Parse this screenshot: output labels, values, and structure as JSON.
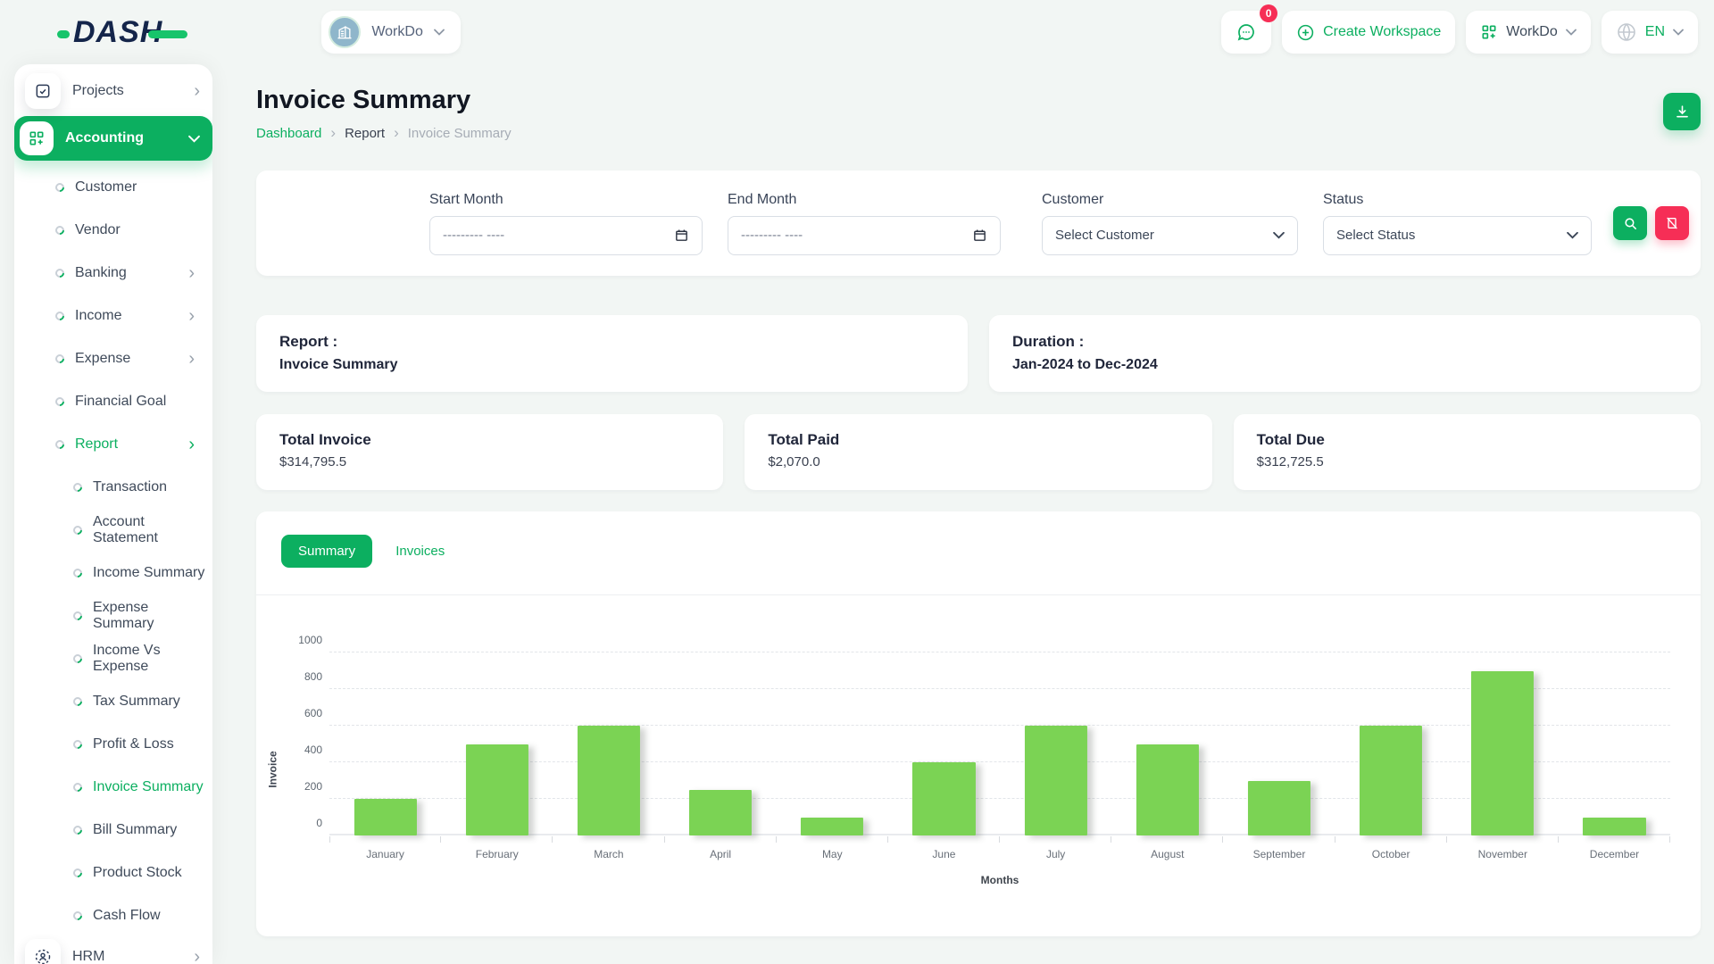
{
  "topbar": {
    "logo": "DASH",
    "workspace_selector": {
      "name": "WorkDo"
    },
    "messages": {
      "badge": "0"
    },
    "create_workspace": {
      "label": "Create Workspace"
    },
    "app_switcher": {
      "label": "WorkDo"
    },
    "language": {
      "code": "EN"
    }
  },
  "sidebar": {
    "items_top": [
      {
        "label": "Projects"
      }
    ],
    "active_item": {
      "label": "Accounting"
    },
    "menu": [
      {
        "label": "Customer",
        "level": 1,
        "chevron": false,
        "active": false
      },
      {
        "label": "Vendor",
        "level": 1,
        "chevron": false,
        "active": false
      },
      {
        "label": "Banking",
        "level": 1,
        "chevron": true,
        "active": false
      },
      {
        "label": "Income",
        "level": 1,
        "chevron": true,
        "active": false
      },
      {
        "label": "Expense",
        "level": 1,
        "chevron": true,
        "active": false
      },
      {
        "label": "Financial Goal",
        "level": 1,
        "chevron": false,
        "active": false
      },
      {
        "label": "Report",
        "level": 1,
        "chevron": true,
        "active": true
      },
      {
        "label": "Transaction",
        "level": 2,
        "chevron": false,
        "active": false
      },
      {
        "label": "Account Statement",
        "level": 2,
        "chevron": false,
        "active": false
      },
      {
        "label": "Income Summary",
        "level": 2,
        "chevron": false,
        "active": false
      },
      {
        "label": "Expense Summary",
        "level": 2,
        "chevron": false,
        "active": false
      },
      {
        "label": "Income Vs Expense",
        "level": 2,
        "chevron": false,
        "active": false
      },
      {
        "label": "Tax Summary",
        "level": 2,
        "chevron": false,
        "active": false
      },
      {
        "label": "Profit & Loss",
        "level": 2,
        "chevron": false,
        "active": false
      },
      {
        "label": "Invoice Summary",
        "level": 2,
        "chevron": false,
        "active": true
      },
      {
        "label": "Bill Summary",
        "level": 2,
        "chevron": false,
        "active": false
      },
      {
        "label": "Product Stock",
        "level": 2,
        "chevron": false,
        "active": false
      },
      {
        "label": "Cash Flow",
        "level": 2,
        "chevron": false,
        "active": false
      }
    ],
    "items_bottom": [
      {
        "label": "HRM"
      }
    ]
  },
  "page": {
    "title": "Invoice Summary",
    "breadcrumb": [
      {
        "label": "Dashboard"
      },
      {
        "label": "Report"
      },
      {
        "label": "Invoice Summary"
      }
    ]
  },
  "filters": {
    "start_month": {
      "label": "Start Month",
      "placeholder": "--------- ----"
    },
    "end_month": {
      "label": "End Month",
      "placeholder": "--------- ----"
    },
    "customer": {
      "label": "Customer",
      "value": "Select Customer"
    },
    "status": {
      "label": "Status",
      "value": "Select Status"
    }
  },
  "info_cards": {
    "report": {
      "label": "Report :",
      "value": "Invoice Summary"
    },
    "duration": {
      "label": "Duration :",
      "value": "Jan-2024 to Dec-2024"
    }
  },
  "stats": [
    {
      "label": "Total Invoice",
      "value": "$314,795.5"
    },
    {
      "label": "Total Paid",
      "value": "$2,070.0"
    },
    {
      "label": "Total Due",
      "value": "$312,725.5"
    }
  ],
  "tabs": [
    {
      "label": "Summary",
      "active": true
    },
    {
      "label": "Invoices",
      "active": false
    }
  ],
  "chart_data": {
    "type": "bar",
    "title": "",
    "categories": [
      "January",
      "February",
      "March",
      "April",
      "May",
      "June",
      "July",
      "August",
      "September",
      "October",
      "November",
      "December"
    ],
    "values": [
      200,
      500,
      600,
      250,
      100,
      400,
      600,
      500,
      300,
      600,
      900,
      100
    ],
    "xlabel": "Months",
    "ylabel": "Invoice",
    "ylim": [
      0,
      1000
    ],
    "yticks": [
      0,
      200,
      400,
      600,
      800,
      1000
    ],
    "bar_color": "#7bd354",
    "grid": "dashed",
    "legend": "none"
  },
  "colors": {
    "primary_green": "#0caf60",
    "bar_green": "#7bd354",
    "pink": "#f62e56",
    "navy": "#14254a",
    "background": "#f2f6f4"
  }
}
